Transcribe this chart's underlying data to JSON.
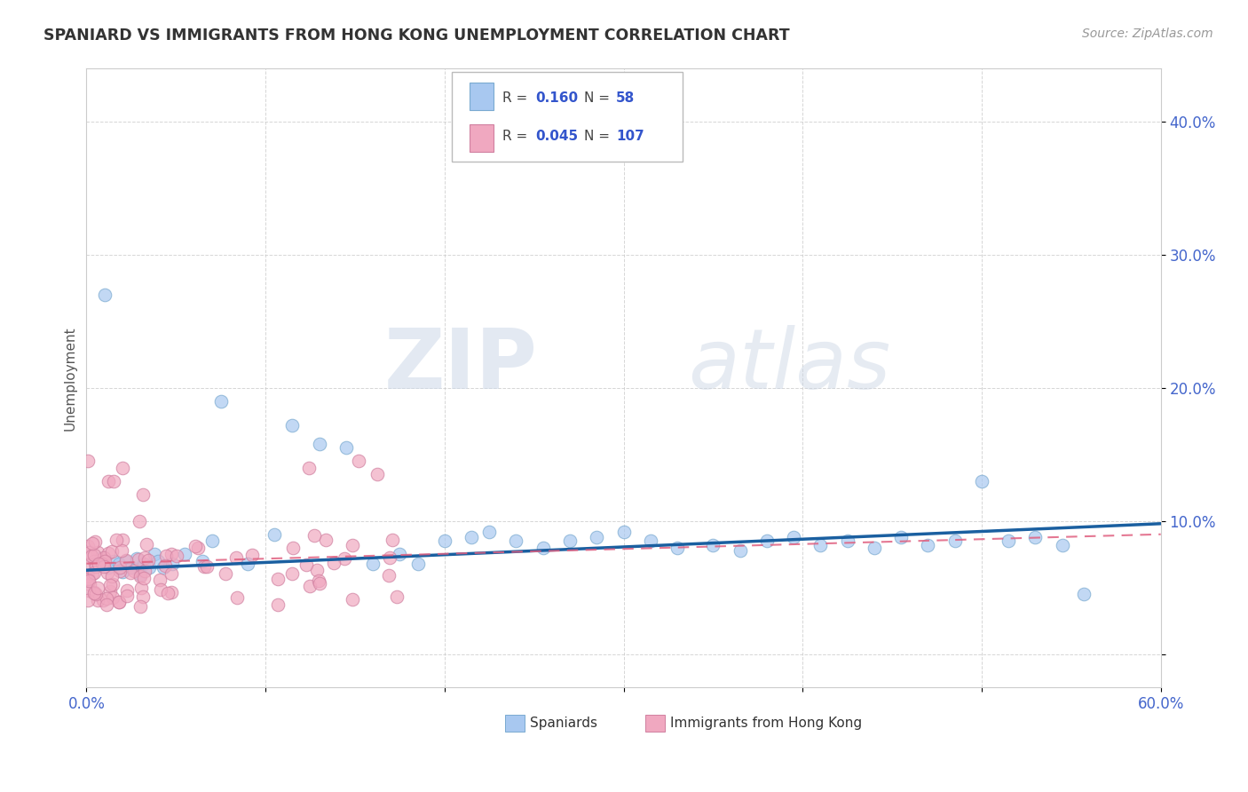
{
  "title": "SPANIARD VS IMMIGRANTS FROM HONG KONG UNEMPLOYMENT CORRELATION CHART",
  "source": "Source: ZipAtlas.com",
  "ylabel": "Unemployment",
  "xlim": [
    0.0,
    0.6
  ],
  "ylim": [
    -0.025,
    0.44
  ],
  "spaniards_color": "#a8c8f0",
  "spaniards_edge_color": "#7aaad0",
  "hk_color": "#f0a8c0",
  "hk_edge_color": "#d080a0",
  "trend_blue": "#1a5fa0",
  "trend_pink": "#e06080",
  "watermark_zip": "ZIP",
  "watermark_atlas": "atlas",
  "legend_r1_val": "0.160",
  "legend_n1_val": "58",
  "legend_r2_val": "0.045",
  "legend_n2_val": "107",
  "blue_line_x0": 0.0,
  "blue_line_y0": 0.063,
  "blue_line_x1": 0.6,
  "blue_line_y1": 0.098,
  "pink_line_x0": 0.0,
  "pink_line_y0": 0.068,
  "pink_line_x1": 0.6,
  "pink_line_y1": 0.09
}
